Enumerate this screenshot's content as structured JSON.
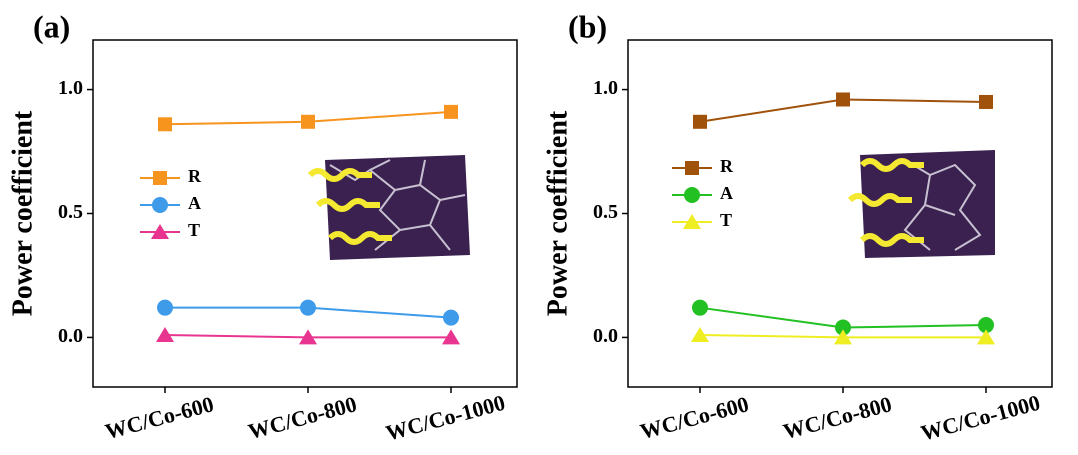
{
  "chart_data": [
    {
      "type": "line",
      "title": "(a)",
      "y_label": "Power coefficient",
      "categories": [
        "WC/Co-600",
        "WC/Co-800",
        "WC/Co-1000"
      ],
      "ylim": [
        -0.2,
        1.2
      ],
      "yticks": [
        {
          "value": 0,
          "label": "0.0"
        },
        0.5,
        {
          "value": 1,
          "label": "1.0"
        }
      ],
      "series": [
        {
          "name": "R",
          "color": "#f7941d",
          "marker": "square",
          "values": [
            0.86,
            0.87,
            0.91
          ]
        },
        {
          "name": "A",
          "color": "#3d9be9",
          "marker": "circle",
          "values": [
            0.12,
            0.12,
            0.08
          ]
        },
        {
          "name": "T",
          "color": "#e8358f",
          "marker": "triangle",
          "values": [
            0.01,
            0,
            0
          ]
        }
      ]
    },
    {
      "type": "line",
      "title": "(b)",
      "y_label": "Power coefficient",
      "categories": [
        "WC/Co-600",
        "WC/Co-800",
        "WC/Co-1000"
      ],
      "ylim": [
        -0.2,
        1.2
      ],
      "yticks": [
        {
          "value": 0,
          "label": "0.0"
        },
        0.5,
        {
          "value": 1,
          "label": "1.0"
        }
      ],
      "series": [
        {
          "name": "R",
          "color": "#a0520a",
          "marker": "square",
          "values": [
            0.87,
            0.96,
            0.95
          ]
        },
        {
          "name": "A",
          "color": "#22c022",
          "marker": "circle",
          "values": [
            0.12,
            0.04,
            0.05
          ]
        },
        {
          "name": "T",
          "color": "#eeee22",
          "marker": "triangle",
          "values": [
            0.01,
            0,
            0
          ]
        }
      ]
    }
  ]
}
